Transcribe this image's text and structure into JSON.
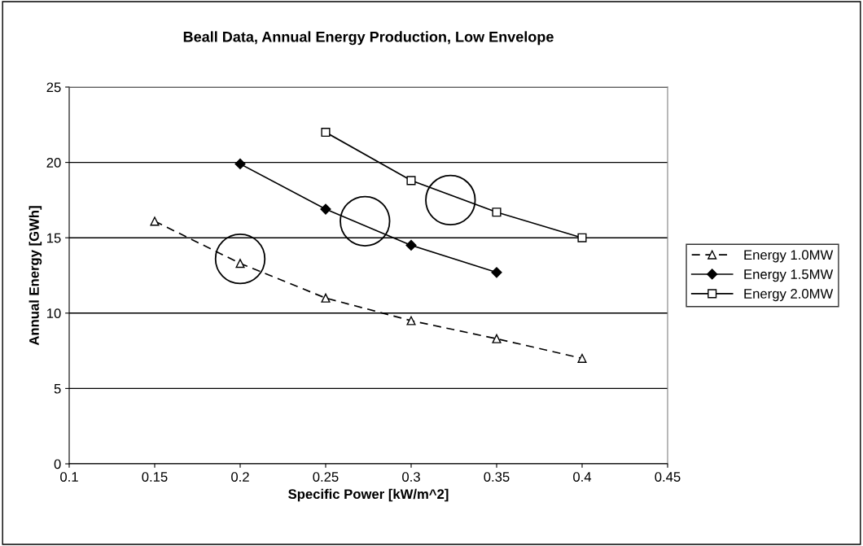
{
  "chart_data": {
    "type": "line",
    "title": "Beall Data, Annual Energy Production, Low Envelope",
    "xlabel": "Specific Power [kW/m^2]",
    "ylabel": "Annual Energy [GWh]",
    "xlim": [
      0.1,
      0.45
    ],
    "xticks": [
      0.1,
      0.15,
      0.2,
      0.25,
      0.3,
      0.35,
      0.4,
      0.45
    ],
    "ylim": [
      0,
      25
    ],
    "yticks": [
      0,
      5,
      10,
      15,
      20,
      25
    ],
    "grid": "y",
    "legend": "right",
    "series": [
      {
        "name": "Energy 1.0MW",
        "color": "#000000",
        "x": [
          0.15,
          0.2,
          0.25,
          0.3,
          0.35,
          0.4
        ],
        "values": [
          16.1,
          13.3,
          11.0,
          9.5,
          8.3,
          7.0
        ],
        "marker": "triangle",
        "line_style": "dashed"
      },
      {
        "name": "Energy 1.5MW",
        "color": "#000000",
        "x": [
          0.2,
          0.25,
          0.3,
          0.35
        ],
        "values": [
          19.9,
          16.9,
          14.5,
          12.7
        ],
        "marker": "diamond",
        "line_style": "solid"
      },
      {
        "name": "Energy 2.0MW",
        "color": "#000000",
        "x": [
          0.25,
          0.3,
          0.35,
          0.4
        ],
        "values": [
          22.0,
          18.8,
          16.7,
          15.0
        ],
        "marker": "square",
        "line_style": "solid"
      },
      {
        "type": "scatter",
        "color": "#000000",
        "x": [
          0.2,
          0.273,
          0.323
        ],
        "values": [
          13.6,
          16.1,
          17.5
        ],
        "marker": "circle"
      }
    ]
  }
}
